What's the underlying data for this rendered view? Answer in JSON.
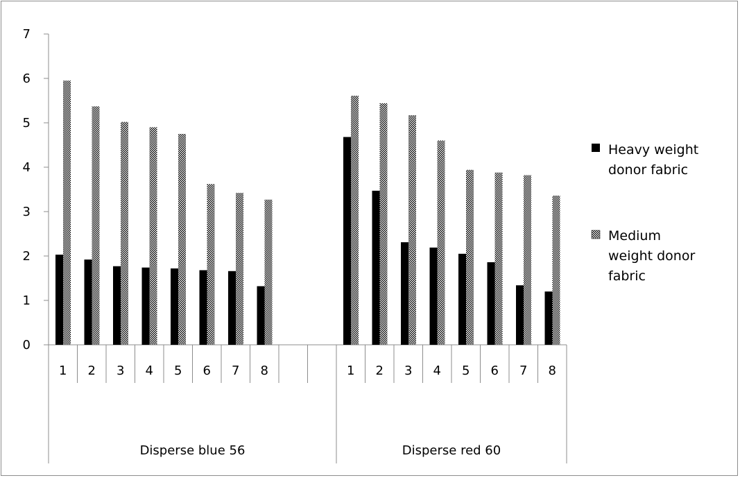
{
  "chart_data": {
    "type": "bar",
    "title": "",
    "xlabel": "",
    "ylabel": "",
    "ylim": [
      0,
      7
    ],
    "yticks": [
      0,
      1,
      2,
      3,
      4,
      5,
      6,
      7
    ],
    "grid": false,
    "legend_position": "right",
    "categories": [
      "1",
      "2",
      "3",
      "4",
      "5",
      "6",
      "7",
      "8",
      "",
      "",
      "1",
      "2",
      "3",
      "4",
      "5",
      "6",
      "7",
      "8"
    ],
    "groups": [
      {
        "label": "Disperse blue 56",
        "span": [
          0,
          9
        ]
      },
      {
        "label": "Disperse red 60",
        "span": [
          10,
          17
        ]
      }
    ],
    "series": [
      {
        "name": "Heavy weight donor fabric",
        "name_lines": [
          "Heavy weight",
          "donor fabric"
        ],
        "pattern": "solid",
        "color": "#000000",
        "values": [
          2.03,
          1.92,
          1.77,
          1.74,
          1.72,
          1.68,
          1.66,
          1.32,
          null,
          null,
          4.68,
          3.47,
          2.31,
          2.19,
          2.05,
          1.86,
          1.34,
          1.2
        ]
      },
      {
        "name": "Medium weight donor fabric",
        "name_lines": [
          "Medium",
          "weight donor",
          "fabric"
        ],
        "pattern": "checker",
        "color": "#000000",
        "values": [
          5.95,
          5.37,
          5.02,
          4.9,
          4.75,
          3.62,
          3.42,
          3.27,
          null,
          null,
          5.61,
          5.44,
          5.17,
          4.6,
          3.94,
          3.88,
          3.82,
          3.36
        ]
      }
    ]
  }
}
